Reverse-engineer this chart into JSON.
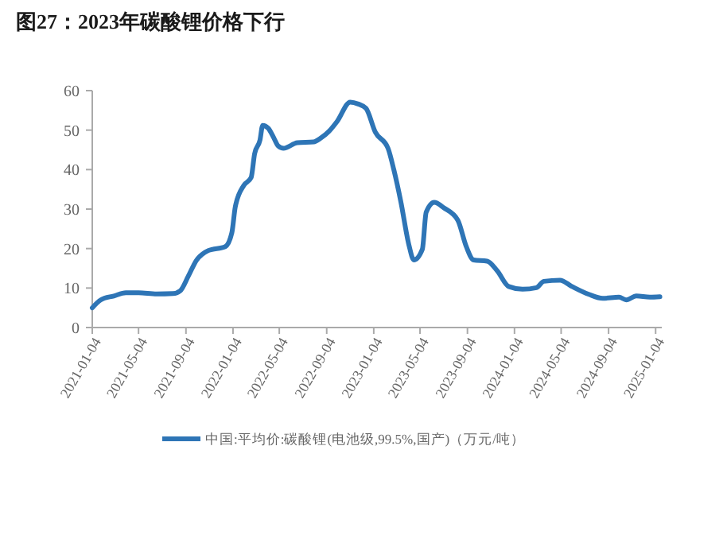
{
  "chart_data": {
    "type": "line",
    "title": "图27：2023年碳酸锂价格下行",
    "x": [
      "2021-01-04",
      "2021-01-26",
      "2021-03-01",
      "2021-04-01",
      "2021-05-04",
      "2021-06-20",
      "2021-08-01",
      "2021-08-20",
      "2021-09-10",
      "2021-10-01",
      "2021-11-01",
      "2021-12-15",
      "2022-01-01",
      "2022-01-10",
      "2022-02-01",
      "2022-02-20",
      "2022-03-01",
      "2022-03-15",
      "2022-03-22",
      "2022-04-05",
      "2022-04-20",
      "2022-05-01",
      "2022-05-15",
      "2022-06-20",
      "2022-08-01",
      "2022-08-20",
      "2022-09-10",
      "2022-10-01",
      "2022-11-04",
      "2022-11-25",
      "2022-12-15",
      "2023-01-08",
      "2023-02-10",
      "2023-02-25",
      "2023-03-15",
      "2023-04-05",
      "2023-04-18",
      "2023-05-10",
      "2023-05-20",
      "2023-06-10",
      "2023-07-05",
      "2023-08-10",
      "2023-09-01",
      "2023-09-20",
      "2023-10-25",
      "2023-11-20",
      "2023-12-20",
      "2024-01-25",
      "2024-03-01",
      "2024-03-20",
      "2024-05-01",
      "2024-06-01",
      "2024-07-15",
      "2024-08-20",
      "2024-10-01",
      "2024-10-20",
      "2024-11-15",
      "2024-12-20",
      "2025-01-15"
    ],
    "series": [
      {
        "name": "中国:平均价:碳酸锂(电池级,99.5%,国产)（万元/吨）",
        "color": "#2e75b6",
        "values": [
          5,
          7,
          8,
          8.8,
          8.8,
          8.5,
          8.6,
          9.3,
          13,
          17,
          19.5,
          20.5,
          24,
          30.6,
          36,
          38,
          44,
          47.5,
          51.2,
          50.5,
          48,
          46,
          45.4,
          46.8,
          47,
          48,
          49.7,
          52.2,
          57.1,
          56.6,
          55.5,
          49.5,
          45.4,
          40,
          32,
          21,
          17.1,
          19.8,
          29.2,
          31.7,
          30.3,
          27.2,
          20.5,
          17.1,
          16.8,
          14.4,
          10.4,
          9.7,
          10.1,
          11.7,
          12,
          10.4,
          8.4,
          7.4,
          7.7,
          7,
          8,
          7.7,
          7.8
        ]
      }
    ],
    "xlim": [
      "2021-01-04",
      "2025-01-20"
    ],
    "xticks": [
      "2021-01-04",
      "2021-05-04",
      "2021-09-04",
      "2022-01-04",
      "2022-05-04",
      "2022-09-04",
      "2023-01-04",
      "2023-05-04",
      "2023-09-04",
      "2024-01-04",
      "2024-05-04",
      "2024-09-04",
      "2025-01-04"
    ],
    "ylim": [
      0,
      60
    ],
    "yticks": [
      0,
      10,
      20,
      30,
      40,
      50,
      60
    ],
    "grid": false,
    "legend": "bottom",
    "marker": "none",
    "line_style": "solid"
  }
}
